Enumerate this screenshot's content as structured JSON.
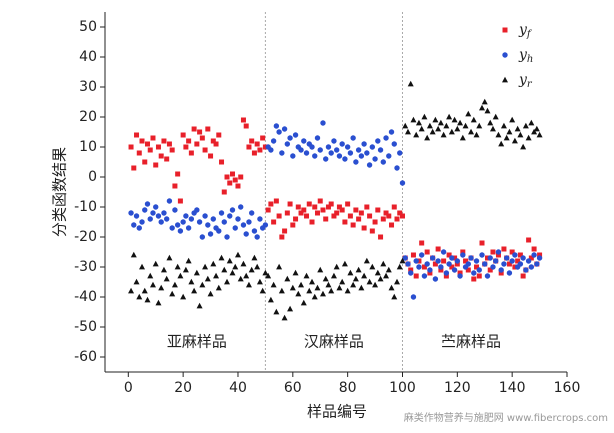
{
  "chart_data": {
    "type": "scatter",
    "xlabel": "样品编号",
    "ylabel": "分类函数结果",
    "xlim": [
      -8.5,
      160
    ],
    "ylim": [
      -65,
      55
    ],
    "xticks": [
      0,
      20,
      40,
      60,
      80,
      100,
      120,
      140,
      160
    ],
    "yticks": [
      -60,
      -50,
      -40,
      -30,
      -20,
      -10,
      0,
      10,
      20,
      30,
      40,
      50
    ],
    "vlines": [
      50,
      100
    ],
    "annotations": [
      {
        "text": "亚麻样品",
        "x": 25,
        "y": -55
      },
      {
        "text": "汉麻样品",
        "x": 75,
        "y": -55
      },
      {
        "text": "苎麻样品",
        "x": 125,
        "y": -55
      }
    ],
    "legend": "upper right",
    "watermark": "麻类作物营养与施肥网 www.fibercrops.com",
    "x": [
      1,
      2,
      3,
      4,
      5,
      6,
      7,
      8,
      9,
      10,
      11,
      12,
      13,
      14,
      15,
      16,
      17,
      18,
      19,
      20,
      21,
      22,
      23,
      24,
      25,
      26,
      27,
      28,
      29,
      30,
      31,
      32,
      33,
      34,
      35,
      36,
      37,
      38,
      39,
      40,
      41,
      42,
      43,
      44,
      45,
      46,
      47,
      48,
      49,
      50,
      51,
      52,
      53,
      54,
      55,
      56,
      57,
      58,
      59,
      60,
      61,
      62,
      63,
      64,
      65,
      66,
      67,
      68,
      69,
      70,
      71,
      72,
      73,
      74,
      75,
      76,
      77,
      78,
      79,
      80,
      81,
      82,
      83,
      84,
      85,
      86,
      87,
      88,
      89,
      90,
      91,
      92,
      93,
      94,
      95,
      96,
      97,
      98,
      99,
      100,
      101,
      102,
      103,
      104,
      105,
      106,
      107,
      108,
      109,
      110,
      111,
      112,
      113,
      114,
      115,
      116,
      117,
      118,
      119,
      120,
      121,
      122,
      123,
      124,
      125,
      126,
      127,
      128,
      129,
      130,
      131,
      132,
      133,
      134,
      135,
      136,
      137,
      138,
      139,
      140,
      141,
      142,
      143,
      144,
      145,
      146,
      147,
      148,
      149,
      150
    ],
    "series": [
      {
        "name": "yf",
        "color": "#e8202a",
        "marker": "square",
        "values": [
          10,
          3,
          14,
          8,
          12,
          5,
          11,
          9,
          13,
          4,
          10,
          7,
          12,
          6,
          11,
          9,
          -3,
          1,
          -8,
          14,
          10,
          12,
          8,
          16,
          11,
          15,
          13,
          9,
          16,
          7,
          12,
          11,
          14,
          5,
          -5,
          0,
          -2,
          1,
          -1,
          -3,
          0,
          19,
          17,
          10,
          12,
          8,
          11,
          9,
          13,
          10,
          -11,
          -9,
          -15,
          -8,
          -13,
          -20,
          -18,
          -12,
          -9,
          -16,
          -14,
          -10,
          -12,
          -11,
          -13,
          -9,
          -15,
          -10,
          -12,
          -8,
          -11,
          -14,
          -10,
          -9,
          -13,
          -12,
          -10,
          -11,
          -15,
          -9,
          -13,
          -16,
          -11,
          -14,
          -12,
          -17,
          -10,
          -13,
          -18,
          -15,
          -11,
          -20,
          -14,
          -12,
          -13,
          -16,
          -10,
          -14,
          -12,
          -13,
          -27,
          -29,
          -31,
          -26,
          -33,
          -28,
          -22,
          -30,
          -25,
          -32,
          -27,
          -29,
          -24,
          -31,
          -28,
          -33,
          -26,
          -30,
          -27,
          -29,
          -32,
          -25,
          -28,
          -31,
          -27,
          -34,
          -30,
          -33,
          -22,
          -29,
          -27,
          -31,
          -25,
          -28,
          -26,
          -32,
          -24,
          -27,
          -29,
          -25,
          -30,
          -28,
          -26,
          -33,
          -31,
          -21,
          -27,
          -24,
          -29,
          -26
        ]
      },
      {
        "name": "yh",
        "color": "#2a4fd0",
        "marker": "circle",
        "values": [
          -12,
          -16,
          -13,
          -17,
          -15,
          -11,
          -9,
          -14,
          -12,
          -10,
          -13,
          -15,
          -12,
          -14,
          -8,
          -17,
          -11,
          -16,
          -18,
          -15,
          -13,
          -17,
          -14,
          -12,
          -11,
          -15,
          -20,
          -13,
          -16,
          -19,
          -14,
          -17,
          -18,
          -12,
          -15,
          -20,
          -13,
          -11,
          -17,
          -14,
          -10,
          -16,
          -19,
          -15,
          -12,
          -18,
          -20,
          -14,
          -17,
          -16,
          10,
          9,
          12,
          17,
          15,
          8,
          16,
          11,
          13,
          7,
          14,
          10,
          9,
          12,
          8,
          11,
          10,
          7,
          13,
          9,
          18,
          6,
          10,
          8,
          12,
          9,
          7,
          11,
          6,
          10,
          8,
          13,
          5,
          9,
          7,
          11,
          8,
          4,
          10,
          6,
          12,
          9,
          5,
          13,
          7,
          15,
          11,
          3,
          8,
          -2,
          -27,
          -29,
          -32,
          -40,
          -28,
          -30,
          -26,
          -33,
          -29,
          -31,
          -27,
          -34,
          -28,
          -30,
          -25,
          -32,
          -29,
          -27,
          -31,
          -28,
          -33,
          -26,
          -30,
          -29,
          -27,
          -32,
          -28,
          -31,
          -26,
          -29,
          -33,
          -27,
          -30,
          -28,
          -25,
          -31,
          -29,
          -27,
          -32,
          -28,
          -26,
          -30,
          -29,
          -27,
          -31,
          -28,
          -30,
          -26,
          -29,
          -27
        ]
      },
      {
        "name": "yr",
        "color": "#111111",
        "marker": "triangle",
        "values": [
          -38,
          -26,
          -35,
          -40,
          -30,
          -38,
          -41,
          -33,
          -36,
          -29,
          -42,
          -37,
          -31,
          -34,
          -27,
          -39,
          -36,
          -30,
          -33,
          -40,
          -31,
          -28,
          -35,
          -38,
          -32,
          -43,
          -36,
          -30,
          -34,
          -39,
          -29,
          -33,
          -37,
          -27,
          -31,
          -35,
          -28,
          -32,
          -30,
          -26,
          -34,
          -29,
          -33,
          -36,
          -31,
          -27,
          -30,
          -35,
          -38,
          -32,
          -33,
          -41,
          -36,
          -45,
          -30,
          -38,
          -47,
          -34,
          -44,
          -37,
          -32,
          -39,
          -36,
          -42,
          -33,
          -38,
          -35,
          -40,
          -37,
          -31,
          -39,
          -34,
          -36,
          -38,
          -33,
          -30,
          -37,
          -35,
          -29,
          -38,
          -32,
          -36,
          -34,
          -31,
          -37,
          -33,
          -28,
          -35,
          -30,
          -36,
          -32,
          -34,
          -29,
          -33,
          -31,
          -37,
          -40,
          -35,
          -30,
          -28,
          17,
          15,
          31,
          19,
          14,
          18,
          16,
          20,
          13,
          17,
          15,
          19,
          16,
          18,
          14,
          17,
          20,
          15,
          19,
          16,
          18,
          13,
          17,
          21,
          15,
          19,
          14,
          17,
          23,
          25,
          22,
          18,
          16,
          20,
          14,
          11,
          17,
          13,
          15,
          19,
          12,
          16,
          14,
          10,
          17,
          13,
          18,
          15,
          16,
          14
        ]
      }
    ]
  }
}
